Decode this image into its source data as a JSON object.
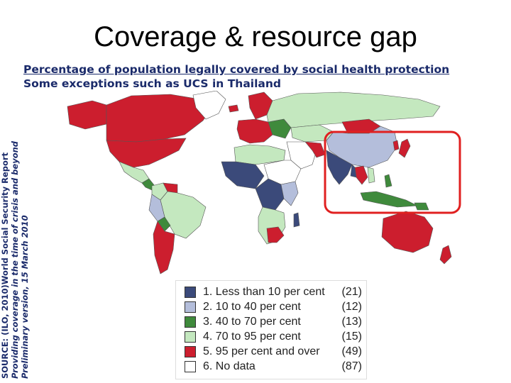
{
  "title": "Coverage & resource gap",
  "subtitle": {
    "line1": "Percentage of population legally covered by social health protection",
    "line2": "Some exceptions such as UCS in Thailand"
  },
  "source": {
    "line1": "SOURCE: (ILO, 2010)World Social Security Report",
    "line2": "Providing coverage in the time of crisis and beyond",
    "line3": "Preliminary version, 15 March 2010"
  },
  "colors": {
    "cat1": "#3b4a7a",
    "cat2": "#b4bedb",
    "cat3": "#3f8a3c",
    "cat4": "#c4e8bf",
    "cat5": "#cc1e2e",
    "cat6": "#ffffff",
    "highlight": "#e02020"
  },
  "legend": [
    {
      "label": "1. Less than 10 per cent",
      "count": "(21)",
      "color": "#3b4a7a"
    },
    {
      "label": "2. 10 to 40 per cent",
      "count": "(12)",
      "color": "#b4bedb"
    },
    {
      "label": "3. 40 to 70 per cent",
      "count": "(13)",
      "color": "#3f8a3c"
    },
    {
      "label": "4. 70 to 95 per cent",
      "count": "(15)",
      "color": "#c4e8bf"
    },
    {
      "label": "5. 95 per cent and over",
      "count": "(49)",
      "color": "#cc1e2e"
    },
    {
      "label": "6. No data",
      "count": "(87)",
      "color": "#ffffff"
    }
  ]
}
